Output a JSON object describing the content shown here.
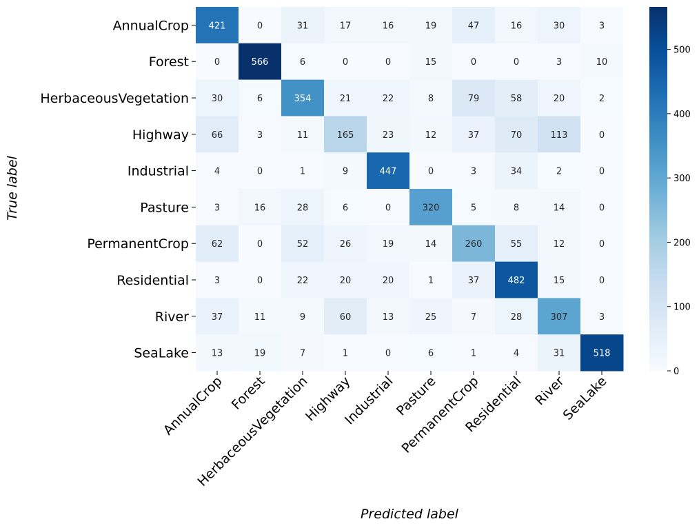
{
  "chart_data": {
    "type": "heatmap",
    "title": "",
    "xlabel": "Predicted label",
    "ylabel": "True label",
    "rows": [
      "AnnualCrop",
      "Forest",
      "HerbaceousVegetation",
      "Highway",
      "Industrial",
      "Pasture",
      "PermanentCrop",
      "Residential",
      "River",
      "SeaLake"
    ],
    "columns": [
      "AnnualCrop",
      "Forest",
      "HerbaceousVegetation",
      "Highway",
      "Industrial",
      "Pasture",
      "PermanentCrop",
      "Residential",
      "River",
      "SeaLake"
    ],
    "values": [
      [
        421,
        0,
        31,
        17,
        16,
        19,
        47,
        16,
        30,
        3
      ],
      [
        0,
        566,
        6,
        0,
        0,
        15,
        0,
        0,
        3,
        10
      ],
      [
        30,
        6,
        354,
        21,
        22,
        8,
        79,
        58,
        20,
        2
      ],
      [
        66,
        3,
        11,
        165,
        23,
        12,
        37,
        70,
        113,
        0
      ],
      [
        4,
        0,
        1,
        9,
        447,
        0,
        3,
        34,
        2,
        0
      ],
      [
        3,
        16,
        28,
        6,
        0,
        320,
        5,
        8,
        14,
        0
      ],
      [
        62,
        0,
        52,
        26,
        19,
        14,
        260,
        55,
        12,
        0
      ],
      [
        3,
        0,
        22,
        20,
        20,
        1,
        37,
        482,
        15,
        0
      ],
      [
        37,
        11,
        9,
        60,
        13,
        25,
        7,
        28,
        307,
        3
      ],
      [
        13,
        19,
        7,
        1,
        0,
        6,
        1,
        4,
        31,
        518
      ]
    ],
    "colormap": "Blues",
    "color_range": [
      0,
      566
    ],
    "colorbar_ticks": [
      0,
      100,
      200,
      300,
      400,
      500
    ],
    "colorbar_placement": "right"
  }
}
